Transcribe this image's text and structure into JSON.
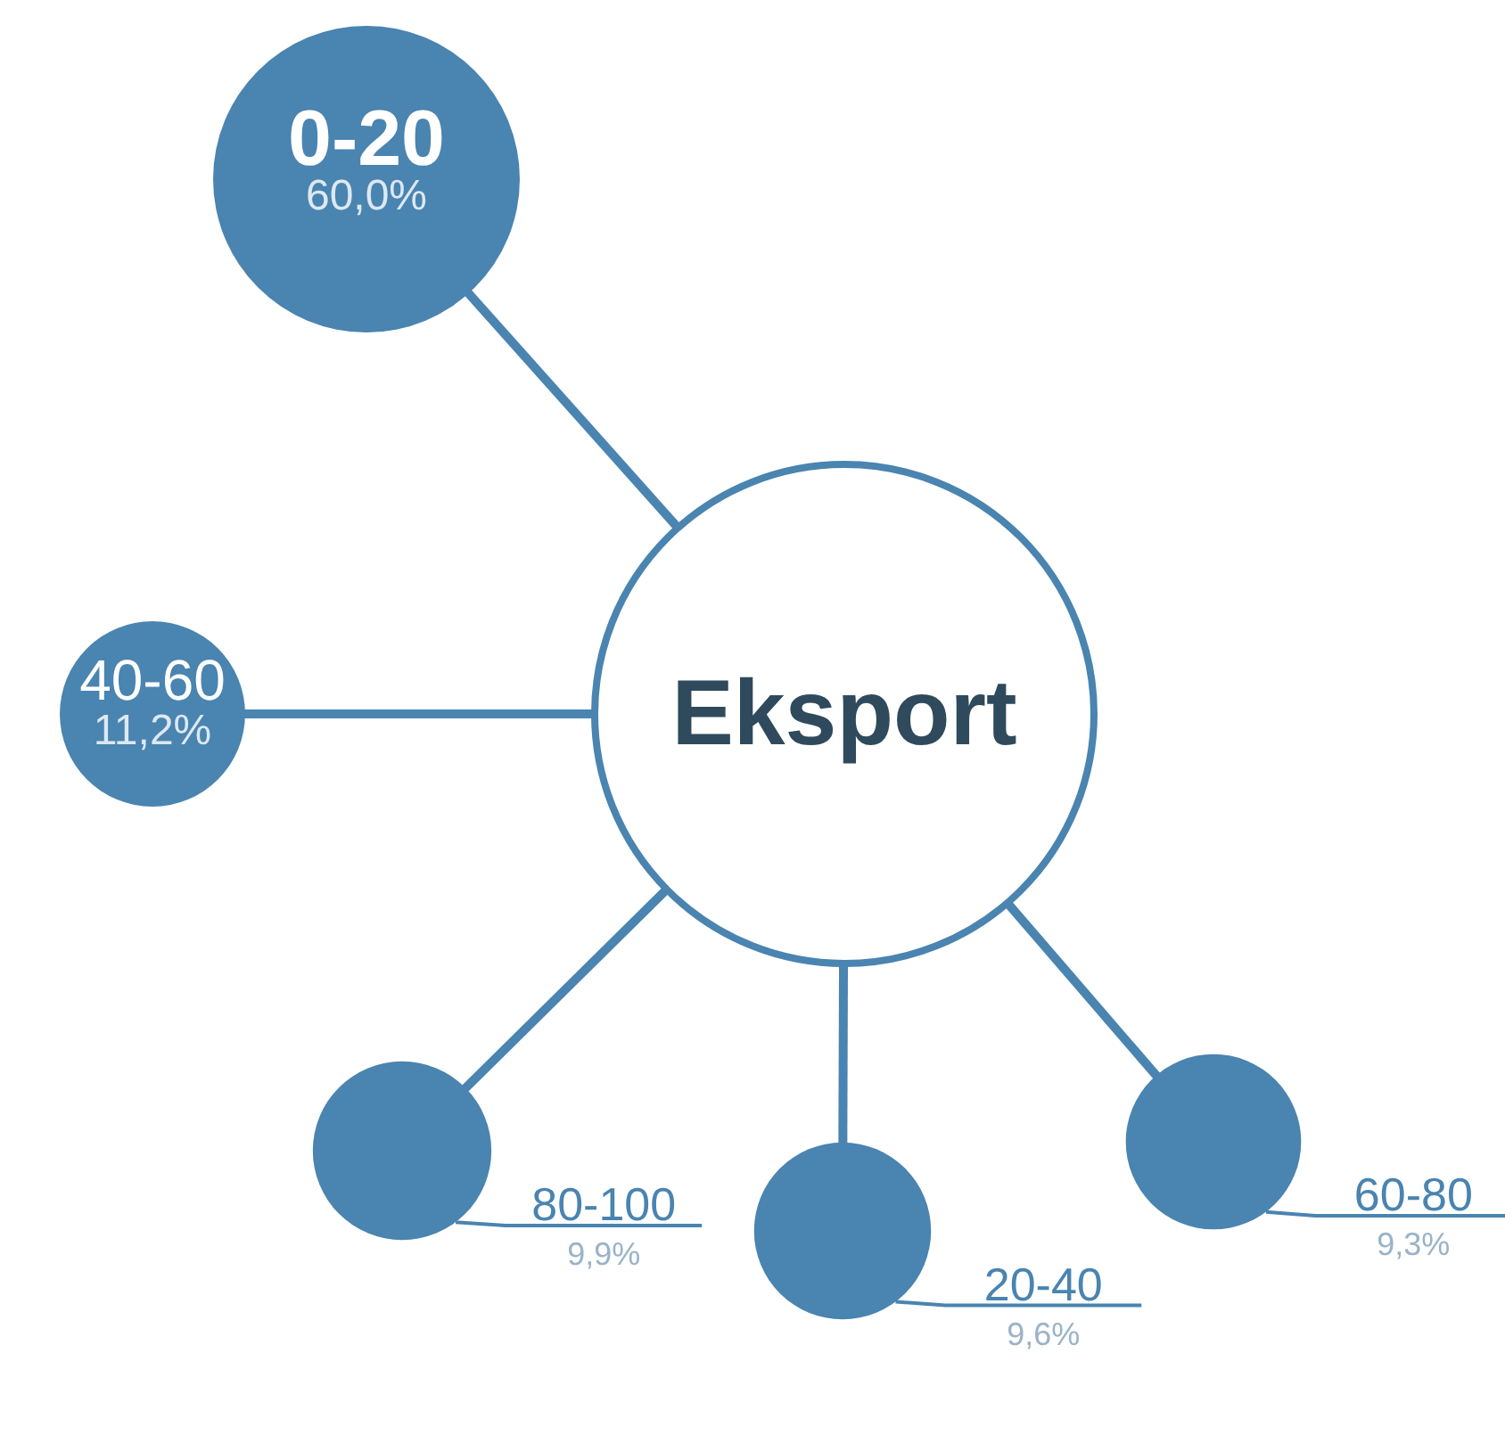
{
  "chart_data": {
    "type": "other",
    "title": "Eksport",
    "categories": [
      "0-20",
      "40-60",
      "80-100",
      "20-40",
      "60-80"
    ],
    "values": [
      60.0,
      11.2,
      9.9,
      9.6,
      9.3
    ],
    "value_labels": [
      "60,0%",
      "11,2%",
      "9,9%",
      "9,6%",
      "9,3%"
    ],
    "color": "#4a84b0"
  }
}
